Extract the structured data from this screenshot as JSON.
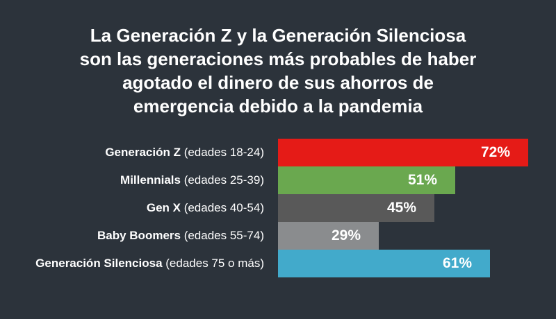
{
  "chart_data": {
    "type": "bar",
    "orientation": "horizontal",
    "title_lines": [
      "La Generación Z y la Generación Silenciosa",
      "son las generaciones más probables de haber",
      "agotado el dinero de sus ahorros de",
      "emergencia debido a la pandemia"
    ],
    "categories": [
      {
        "name": "Generación Z",
        "range": "(edades 18-24)"
      },
      {
        "name": "Millennials",
        "range": "(edades 25-39)"
      },
      {
        "name": "Gen X",
        "range": "(edades 40-54)"
      },
      {
        "name": "Baby Boomers",
        "range": "(edades 55-74)"
      },
      {
        "name": "Generación Silenciosa",
        "range": "(edades 75 o más)"
      }
    ],
    "values": [
      72,
      51,
      45,
      29,
      61
    ],
    "value_labels": [
      "72%",
      "51%",
      "45%",
      "29%",
      "61%"
    ],
    "colors": [
      "#e51b17",
      "#6aa84f",
      "#595959",
      "#8a8c8e",
      "#42aacb"
    ],
    "xlim": [
      0,
      100
    ],
    "grid": false,
    "legend": "none"
  }
}
